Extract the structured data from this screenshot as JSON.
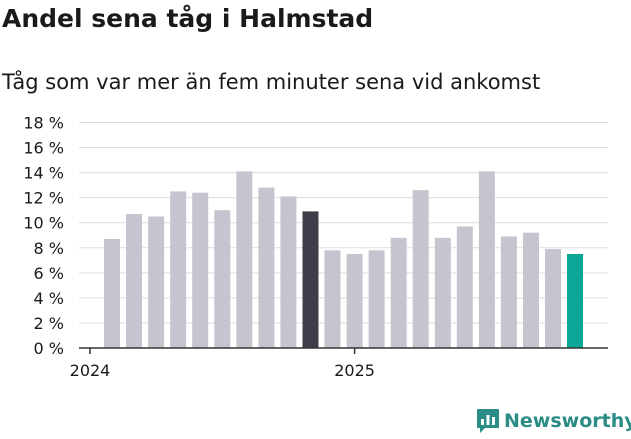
{
  "header": {
    "title": "Andel sena tåg i Halmstad",
    "subtitle": "Tåg som var mer än fem minuter sena vid ankomst"
  },
  "brand": {
    "name": "Newsworthy",
    "icon": "newsworthy-logo-icon"
  },
  "colors": {
    "bar_default": "#c6c5cf",
    "bar_highlight": "#3e3d4a",
    "bar_latest": "#0aa696",
    "grid": "#dddddd",
    "axis": "#333333",
    "brand": "#2a8c85"
  },
  "chart_data": {
    "type": "bar",
    "title": "Andel sena tåg i Halmstad",
    "subtitle": "Tåg som var mer än fem minuter sena vid ankomst",
    "xlabel": "",
    "ylabel": "",
    "x_tick_labels": [
      {
        "label": "2024",
        "category_index": 0
      },
      {
        "label": "2025",
        "category_index": 12
      }
    ],
    "y_ticks": [
      0,
      2,
      4,
      6,
      8,
      10,
      12,
      14,
      16,
      18
    ],
    "y_tick_suffix": " %",
    "ylim": [
      0,
      18
    ],
    "grid": true,
    "legend": "none",
    "series": [
      {
        "values": [
          8.7,
          10.7,
          10.5,
          12.5,
          12.4,
          11.0,
          14.1,
          12.8,
          12.1,
          10.9,
          7.8,
          7.5,
          7.8,
          8.8,
          12.6,
          8.8,
          9.7,
          14.1,
          8.9,
          9.2,
          7.9,
          7.5
        ]
      }
    ],
    "highlight": [
      {
        "index": 9,
        "color_key": "bar_highlight"
      },
      {
        "index": 21,
        "color_key": "bar_latest"
      }
    ]
  }
}
